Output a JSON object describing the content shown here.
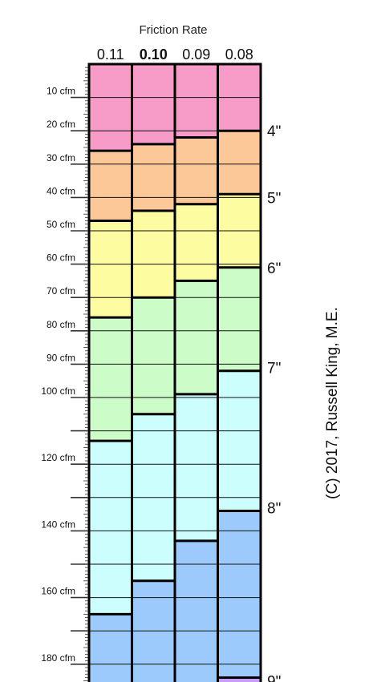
{
  "chart_data": {
    "type": "table",
    "title": "Friction Rate",
    "columns": [
      {
        "label": "0.11",
        "bold": false
      },
      {
        "label": "0.10",
        "bold": true
      },
      {
        "label": "0.09",
        "bold": false
      },
      {
        "label": "0.08",
        "bold": false
      }
    ],
    "y_axis": {
      "unit": "cfm",
      "range": [
        0,
        190
      ],
      "tick_labels": [
        "10 cfm",
        "20 cfm",
        "30 cfm",
        "40 cfm",
        "50 cfm",
        "60 cfm",
        "70 cfm",
        "80 cfm",
        "90 cfm",
        "100 cfm",
        "120 cfm",
        "140 cfm",
        "160 cfm",
        "180 cfm"
      ],
      "tick_values": [
        10,
        20,
        30,
        40,
        50,
        60,
        70,
        80,
        90,
        100,
        120,
        140,
        160,
        180
      ]
    },
    "duct_sizes": [
      {
        "label": "4\"",
        "color": "#f79cc8",
        "max_cfm": [
          26,
          24,
          22,
          20
        ]
      },
      {
        "label": "5\"",
        "color": "#fcc898",
        "max_cfm": [
          47,
          44,
          42,
          39
        ]
      },
      {
        "label": "6\"",
        "color": "#fdfca0",
        "max_cfm": [
          76,
          70,
          65,
          61
        ]
      },
      {
        "label": "7\"",
        "color": "#ccfcc8",
        "max_cfm": [
          113,
          105,
          99,
          92
        ]
      },
      {
        "label": "8\"",
        "color": "#ccfefe",
        "max_cfm": [
          165,
          155,
          143,
          134
        ]
      },
      {
        "label": "9\"",
        "color": "#9ccafc",
        "max_cfm": [
          190,
          190,
          190,
          184
        ]
      },
      {
        "label": "",
        "color": "#c89cf8",
        "max_cfm": [
          190,
          190,
          190,
          190
        ]
      }
    ],
    "right_labels": [
      {
        "text": "4\"",
        "cfm": 20
      },
      {
        "text": "5\"",
        "cfm": 40
      },
      {
        "text": "6\"",
        "cfm": 61
      },
      {
        "text": "7\"",
        "cfm": 91
      },
      {
        "text": "8\"",
        "cfm": 133
      },
      {
        "text": "9\"",
        "cfm": 185
      }
    ],
    "copyright": "(C) 2017, Russell King, M.E."
  }
}
